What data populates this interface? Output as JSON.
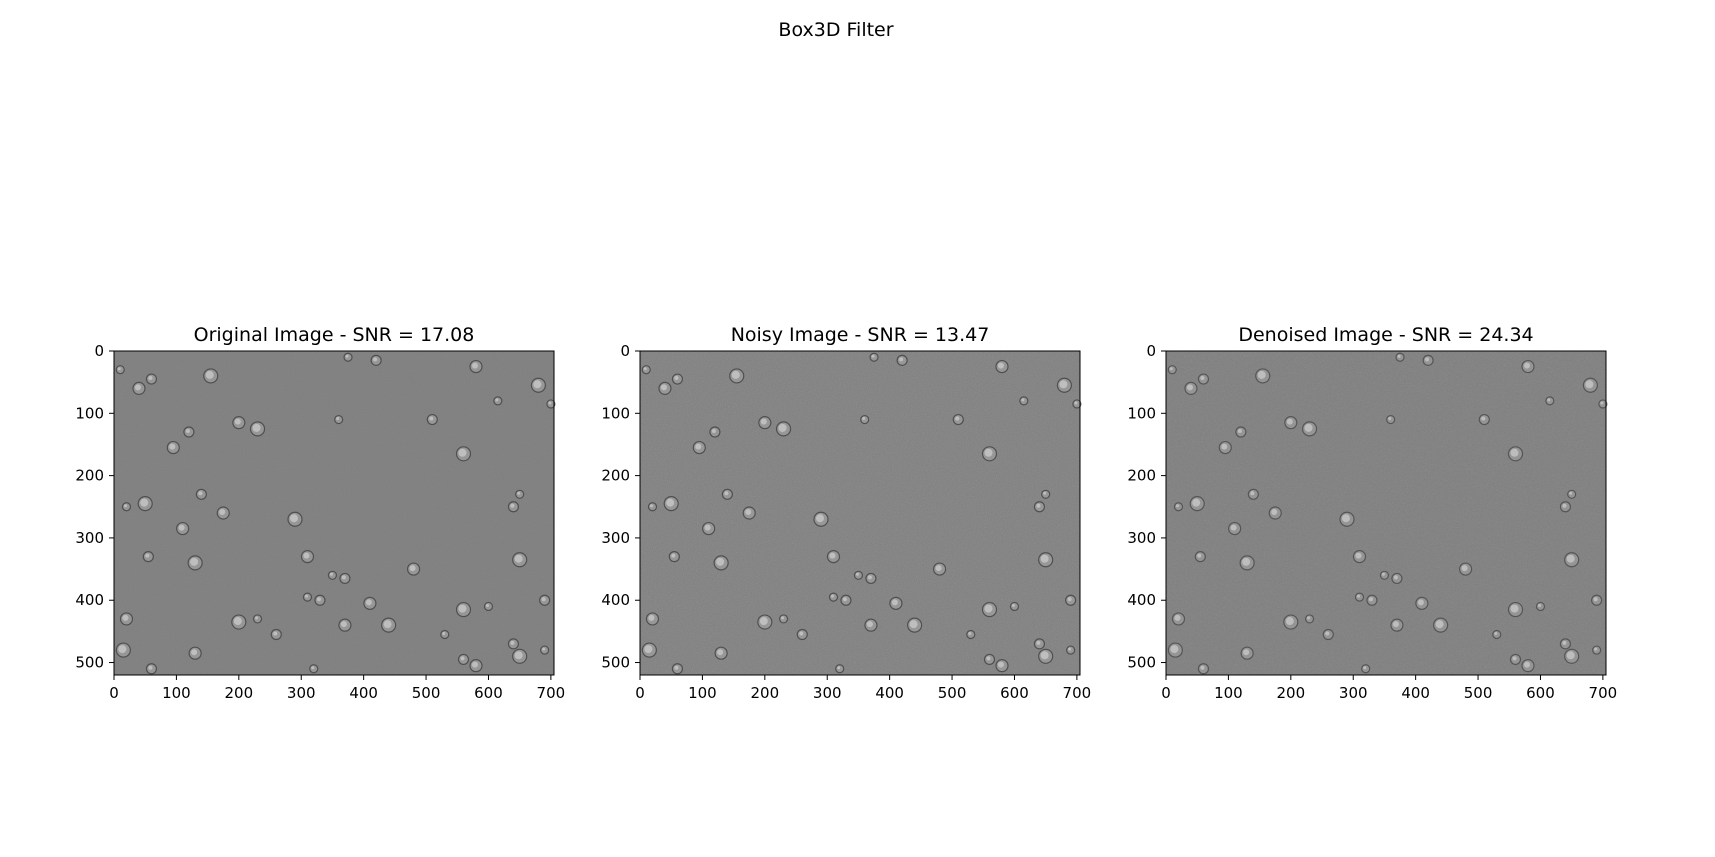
{
  "figure": {
    "suptitle": "Box3D Filter"
  },
  "chart_data": [
    {
      "type": "image",
      "title": "Original Image - SNR = 17.08",
      "snr": 17.08,
      "xlim": [
        0,
        705
      ],
      "ylim": [
        520,
        0
      ],
      "xticks": [
        0,
        100,
        200,
        300,
        400,
        500,
        600,
        700
      ],
      "yticks": [
        0,
        100,
        200,
        300,
        400,
        500
      ],
      "xtick_labels": [
        "0",
        "100",
        "200",
        "300",
        "400",
        "500",
        "600",
        "700"
      ],
      "ytick_labels": [
        "0",
        "100",
        "200",
        "300",
        "400",
        "500"
      ],
      "background_color": "#7f7f7f",
      "grid": false
    },
    {
      "type": "image",
      "title": "Noisy Image - SNR = 13.47",
      "snr": 13.47,
      "xlim": [
        0,
        705
      ],
      "ylim": [
        520,
        0
      ],
      "xticks": [
        0,
        100,
        200,
        300,
        400,
        500,
        600,
        700
      ],
      "yticks": [
        0,
        100,
        200,
        300,
        400,
        500
      ],
      "xtick_labels": [
        "0",
        "100",
        "200",
        "300",
        "400",
        "500",
        "600",
        "700"
      ],
      "ytick_labels": [
        "0",
        "100",
        "200",
        "300",
        "400",
        "500"
      ],
      "background_color": "#7d7d7d",
      "grid": false
    },
    {
      "type": "image",
      "title": "Denoised Image - SNR = 24.34",
      "snr": 24.34,
      "xlim": [
        0,
        705
      ],
      "ylim": [
        520,
        0
      ],
      "xticks": [
        0,
        100,
        200,
        300,
        400,
        500,
        600,
        700
      ],
      "yticks": [
        0,
        100,
        200,
        300,
        400,
        500
      ],
      "xtick_labels": [
        "0",
        "100",
        "200",
        "300",
        "400",
        "500",
        "600",
        "700"
      ],
      "ytick_labels": [
        "0",
        "100",
        "200",
        "300",
        "400",
        "500"
      ],
      "background_color": "#7f7f7f",
      "grid": false
    }
  ]
}
